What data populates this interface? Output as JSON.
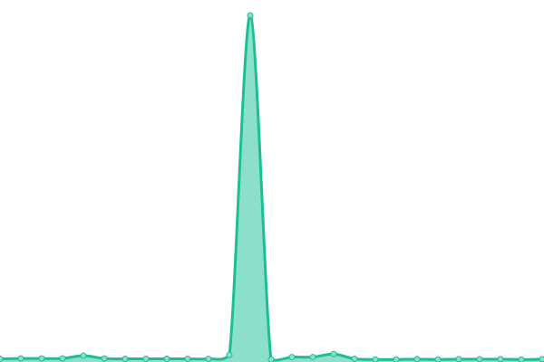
{
  "chart_data": {
    "type": "area",
    "title": "",
    "xlabel": "",
    "ylabel": "",
    "grid": false,
    "legend": "none",
    "x": [
      0,
      1,
      2,
      3,
      4,
      5,
      6,
      7,
      8,
      9,
      10,
      11,
      12,
      13,
      14,
      15,
      16,
      17,
      18,
      19,
      20,
      21,
      22,
      23,
      24,
      25,
      26
    ],
    "values": [
      0.4,
      0.5,
      0.5,
      0.5,
      1.3,
      0.5,
      0.4,
      0.4,
      0.4,
      0.4,
      0.4,
      1.5,
      100,
      0.2,
      0.9,
      0.9,
      1.8,
      0.4,
      0.2,
      0.2,
      0.3,
      0.2,
      0.3,
      0.3,
      0.3,
      0.2,
      0.3
    ],
    "ylim": [
      0,
      100
    ],
    "colors": {
      "line": "#1bbf94",
      "fill": "#8ce0cb",
      "marker": "#8ce0cb"
    }
  }
}
